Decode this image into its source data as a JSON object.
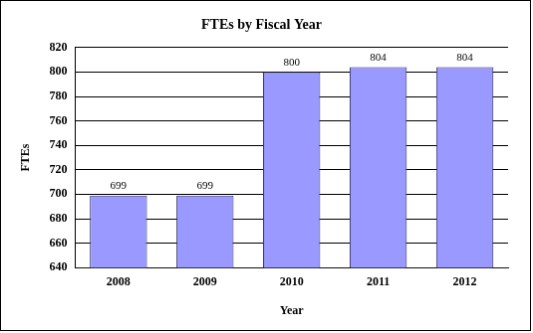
{
  "chart_data": {
    "type": "bar",
    "title": "FTEs by Fiscal Year",
    "x_label": "Year",
    "y_label": "FTEs",
    "categories": [
      "2008",
      "2009",
      "2010",
      "2011",
      "2012"
    ],
    "values": [
      699,
      699,
      800,
      804,
      804
    ],
    "color": "#9999ff",
    "ylim": [
      640,
      820
    ],
    "yticks": [
      640,
      660,
      680,
      700,
      720,
      740,
      760,
      780,
      800,
      820
    ],
    "grid": true,
    "data_labels": true
  }
}
